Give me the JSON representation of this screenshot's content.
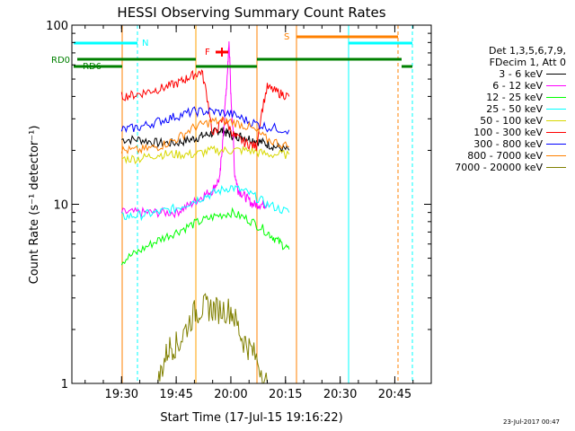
{
  "chart_data": {
    "type": "line",
    "title": "HESSI Observing Summary Count Rates",
    "xlabel": "Start Time (17-Jul-15 19:16:22)",
    "ylabel": "Count Rate (s⁻¹ detector⁻¹)",
    "xlim": [
      "19:16:22",
      "20:55"
    ],
    "ylim": [
      1,
      100
    ],
    "y_scale": "log",
    "x_ticks": [
      "19:30",
      "19:45",
      "20:00",
      "20:15",
      "20:30",
      "20:45"
    ],
    "y_ticks": [
      "1",
      "10",
      "100"
    ],
    "legend_position": "right",
    "legend_header": [
      "Det 1,3,5,6,7,9,",
      "FDecim 1, Att 0"
    ],
    "series": [
      {
        "name": "3 - 6 keV",
        "color": "#000000",
        "x": [
          "19:30",
          "19:35",
          "19:40",
          "19:45",
          "19:49",
          "19:52",
          "19:55",
          "19:57",
          "19:59",
          "20:01",
          "20:03",
          "20:06",
          "20:09",
          "20:12",
          "20:16"
        ],
        "values": [
          23,
          23,
          22,
          22,
          23,
          24,
          25,
          26,
          25,
          24,
          24,
          23,
          22,
          21,
          20
        ]
      },
      {
        "name": "6 - 12 keV",
        "color": "#ff00ff",
        "x": [
          "19:30",
          "19:35",
          "19:40",
          "19:45",
          "19:49",
          "19:52",
          "19:55",
          "19:57",
          "19:58",
          "19:59",
          "19:59:30",
          "20:00",
          "20:01",
          "20:02",
          "20:04",
          "20:06",
          "20:08",
          "20:10"
        ],
        "values": [
          9,
          9,
          9,
          9,
          10,
          11,
          12,
          14,
          25,
          50,
          80,
          40,
          15,
          12,
          11,
          10,
          10,
          10
        ]
      },
      {
        "name": "12 - 25 keV",
        "color": "#00ff00",
        "x": [
          "19:30",
          "19:35",
          "19:40",
          "19:45",
          "19:50",
          "19:55",
          "20:00",
          "20:05",
          "20:10",
          "20:13",
          "20:16"
        ],
        "values": [
          4.8,
          5.5,
          6.3,
          7,
          7.8,
          8.5,
          9,
          8.2,
          7,
          6.2,
          5.6
        ]
      },
      {
        "name": "25 - 50 keV",
        "color": "#00ffff",
        "x": [
          "19:30",
          "19:35",
          "19:40",
          "19:45",
          "19:50",
          "19:55",
          "20:00",
          "20:05",
          "20:10",
          "20:16"
        ],
        "values": [
          8.5,
          8.7,
          9,
          9.5,
          10.5,
          11.5,
          12.5,
          11.5,
          10,
          9
        ]
      },
      {
        "name": "50 - 100 keV",
        "color": "#d8d800",
        "x": [
          "19:30",
          "19:35",
          "19:40",
          "19:45",
          "19:50",
          "19:55",
          "20:00",
          "20:05",
          "20:10",
          "20:16"
        ],
        "values": [
          18,
          18,
          19,
          19,
          19,
          20,
          20,
          20,
          19,
          19
        ]
      },
      {
        "name": "100 - 300 keV",
        "color": "#ff0000",
        "x": [
          "19:30",
          "19:34",
          "19:38",
          "19:42",
          "19:46",
          "19:49",
          "19:52",
          "19:55",
          "19:58",
          "20:01",
          "20:04",
          "20:07",
          "20:10",
          "20:13",
          "20:16"
        ],
        "values": [
          40,
          41,
          43,
          45,
          48,
          52,
          55,
          24,
          30,
          24,
          22,
          21,
          45,
          42,
          40
        ]
      },
      {
        "name": "300 - 800 keV",
        "color": "#0000ff",
        "x": [
          "19:30",
          "19:35",
          "19:40",
          "19:45",
          "19:50",
          "19:55",
          "20:00",
          "20:05",
          "20:10",
          "20:16"
        ],
        "values": [
          26,
          27,
          29,
          31,
          33,
          33,
          32,
          29,
          27,
          26
        ]
      },
      {
        "name": "800 - 7000 keV",
        "color": "#ff8000",
        "x": [
          "19:30",
          "19:35",
          "19:40",
          "19:45",
          "19:50",
          "19:55",
          "20:00",
          "20:05",
          "20:10",
          "20:16"
        ],
        "values": [
          20,
          20,
          21,
          23,
          27,
          29,
          29,
          27,
          23,
          21
        ]
      },
      {
        "name": "7000 - 20000 keV",
        "color": "#808000",
        "x": [
          "19:40",
          "19:43",
          "19:46",
          "19:50",
          "19:53",
          "19:56",
          "20:00",
          "20:03",
          "20:06",
          "20:10"
        ],
        "values": [
          1,
          1.6,
          1.7,
          2.5,
          2.7,
          2.6,
          2.6,
          1.8,
          1.5,
          1
        ]
      }
    ],
    "annotations": [
      {
        "text": "N",
        "color": "#00ffff"
      },
      {
        "text": "S",
        "color": "#ff8000"
      },
      {
        "text": "F",
        "color": "#ff0000"
      },
      {
        "text": "RD0",
        "color": "#008000"
      },
      {
        "text": "RD6",
        "color": "#008000"
      }
    ],
    "timestamp": "23-Jul-2017 00:47"
  }
}
